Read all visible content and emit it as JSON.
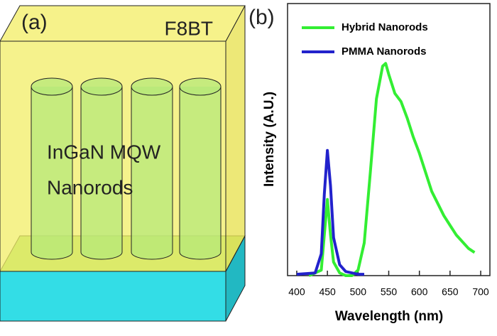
{
  "schematic": {
    "panel_label": "(a)",
    "layer_label": "F8BT",
    "rods_label_line1": "InGaN MQW",
    "rods_label_line2": "Nanorods"
  },
  "chart_data": {
    "type": "line",
    "panel_label": "(b)",
    "x_label": "Wavelength (nm)",
    "y_label": "Intensity (A.U.)",
    "xlim": [
      385,
      715
    ],
    "xticks": [
      400,
      450,
      500,
      550,
      600,
      650,
      700
    ],
    "ylim": [
      0,
      1
    ],
    "legend": "upper-left",
    "series": [
      {
        "name": "Hybrid Nanorods",
        "color": "#33ee33",
        "x": [
          420,
          440,
          445,
          450,
          455,
          460,
          470,
          480,
          490,
          500,
          510,
          520,
          530,
          540,
          545,
          550,
          560,
          570,
          580,
          590,
          600,
          620,
          640,
          660,
          680,
          690
        ],
        "values": [
          0.0,
          0.02,
          0.15,
          0.28,
          0.15,
          0.05,
          0.01,
          0.0,
          0.0,
          0.02,
          0.12,
          0.38,
          0.65,
          0.77,
          0.78,
          0.74,
          0.67,
          0.64,
          0.58,
          0.51,
          0.45,
          0.31,
          0.22,
          0.15,
          0.1,
          0.085
        ]
      },
      {
        "name": "PMMA Nanorods",
        "color": "#2222cc",
        "x": [
          400,
          430,
          440,
          445,
          450,
          455,
          460,
          470,
          480,
          500,
          510
        ],
        "values": [
          0.005,
          0.01,
          0.08,
          0.3,
          0.46,
          0.33,
          0.14,
          0.04,
          0.015,
          0.005,
          0.005
        ]
      }
    ]
  }
}
